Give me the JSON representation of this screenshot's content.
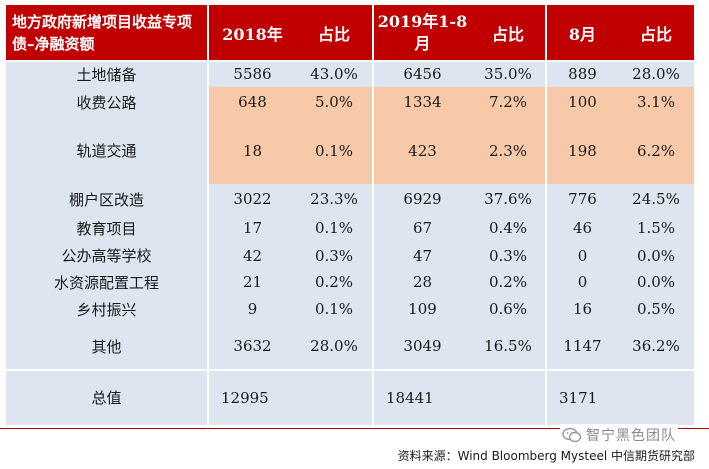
{
  "table": {
    "header": {
      "label": "地方政府新增项目收益专项债–净融资额",
      "columns": [
        "2018年",
        "占比",
        "2019年1-8月",
        "占比",
        "8月",
        "占比"
      ]
    },
    "rows": [
      {
        "label": "土地储备",
        "values": [
          "5586",
          "43.0%",
          "6456",
          "35.0%",
          "889",
          "28.0%"
        ]
      },
      {
        "label": "收费公路",
        "values": [
          "648",
          "5.0%",
          "1334",
          "7.2%",
          "100",
          "3.1%"
        ]
      },
      {
        "label": "轨道交通",
        "values": [
          "18",
          "0.1%",
          "423",
          "2.3%",
          "198",
          "6.2%"
        ]
      },
      {
        "label": "棚户区改造",
        "values": [
          "3022",
          "23.3%",
          "6929",
          "37.6%",
          "776",
          "24.5%"
        ]
      },
      {
        "label": "教育项目",
        "values": [
          "17",
          "0.1%",
          "67",
          "0.4%",
          "46",
          "1.5%"
        ]
      },
      {
        "label": "公办高等学校",
        "values": [
          "42",
          "0.3%",
          "47",
          "0.3%",
          "0",
          "0.0%"
        ]
      },
      {
        "label": "水资源配置工程",
        "values": [
          "21",
          "0.2%",
          "28",
          "0.2%",
          "0",
          "0.0%"
        ]
      },
      {
        "label": "乡村振兴",
        "values": [
          "9",
          "0.1%",
          "109",
          "0.6%",
          "16",
          "0.5%"
        ]
      },
      {
        "label": "其他",
        "values": [
          "3632",
          "28.0%",
          "3049",
          "16.5%",
          "1147",
          "36.2%"
        ]
      }
    ],
    "total": {
      "label": "总值",
      "values": [
        "12995",
        "18441",
        "3171"
      ]
    }
  },
  "brand": {
    "name": "智宁黑色团队",
    "icon": "wechat-icon"
  },
  "source": "资料来源：Wind Bloomberg Mysteel 中信期货研究部",
  "colors": {
    "header": "#c00000",
    "body": "#dde5f1",
    "highlight": "#f8c9a8"
  }
}
